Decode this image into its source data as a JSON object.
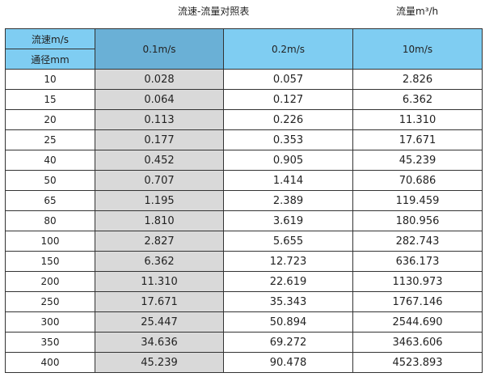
{
  "title": "流速-流量对照表",
  "unit_label": "流量m³/h",
  "colors": {
    "header_bg": "#7fcdf2",
    "highlight_header_bg": "#6ab0d6",
    "highlight_column_bg": "#d9d9d9"
  },
  "header": {
    "velocity_label": "流速m/s",
    "diameter_label": "通径mm",
    "columns": [
      "0.1m/s",
      "0.2m/s",
      "10m/s"
    ]
  },
  "rows": [
    [
      "10",
      "0.028",
      "0.057",
      "2.826"
    ],
    [
      "15",
      "0.064",
      "0.127",
      "6.362"
    ],
    [
      "20",
      "0.113",
      "0.226",
      "11.310"
    ],
    [
      "25",
      "0.177",
      "0.353",
      "17.671"
    ],
    [
      "40",
      "0.452",
      "0.905",
      "45.239"
    ],
    [
      "50",
      "0.707",
      "1.414",
      "70.686"
    ],
    [
      "65",
      "1.195",
      "2.389",
      "119.459"
    ],
    [
      "80",
      "1.810",
      "3.619",
      "180.956"
    ],
    [
      "100",
      "2.827",
      "5.655",
      "282.743"
    ],
    [
      "150",
      "6.362",
      "12.723",
      "636.173"
    ],
    [
      "200",
      "11.310",
      "22.619",
      "1130.973"
    ],
    [
      "250",
      "17.671",
      "35.343",
      "1767.146"
    ],
    [
      "300",
      "25.447",
      "50.894",
      "2544.690"
    ],
    [
      "350",
      "34.636",
      "69.272",
      "3463.606"
    ],
    [
      "400",
      "45.239",
      "90.478",
      "4523.893"
    ]
  ]
}
